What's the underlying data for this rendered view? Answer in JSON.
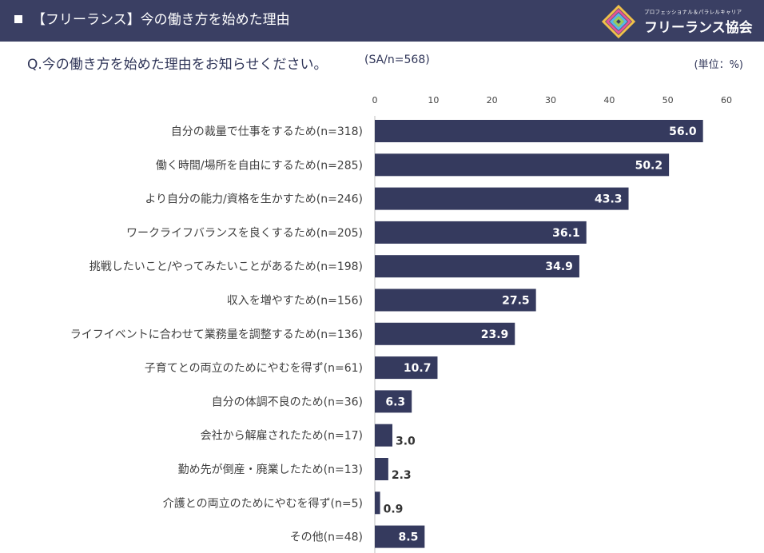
{
  "header": {
    "title": "【フリーランス】今の働き方を始めた理由",
    "logo_tagline": "プロフェッショナル＆パラレルキャリア",
    "logo_name": "フリーランス協会"
  },
  "question": {
    "text": "Q.今の働き方を始めた理由をお知らせください。",
    "sample": "(SA/n=568)",
    "unit": "(単位：%)"
  },
  "colors": {
    "header_bg": "#3a3f63",
    "bar": "#353a5e",
    "bar_label_inside": "#ffffff",
    "bar_label_outside": "#333333"
  },
  "chart_data": {
    "type": "bar",
    "orientation": "horizontal",
    "xlim": [
      0,
      60
    ],
    "ticks": [
      0,
      10,
      20,
      30,
      40,
      50,
      60
    ],
    "grid": false,
    "categories": [
      "自分の裁量で仕事をするため(n=318)",
      "働く時間/場所を自由にするため(n=285)",
      "より自分の能力/資格を生かすため(n=246)",
      "ワークライフバランスを良くするため(n=205)",
      "挑戦したいこと/やってみたいことがあるため(n=198)",
      "収入を増やすため(n=156)",
      "ライフイベントに合わせて業務量を調整するため(n=136)",
      "子育てとの両立のためにやむを得ず(n=61)",
      "自分の体調不良のため(n=36)",
      "会社から解雇されたため(n=17)",
      "勤め先が倒産・廃業したため(n=13)",
      "介護との両立のためにやむを得ず(n=5)",
      "その他(n=48)"
    ],
    "values": [
      56.0,
      50.2,
      43.3,
      36.1,
      34.9,
      27.5,
      23.9,
      10.7,
      6.3,
      3.0,
      2.3,
      0.9,
      8.5
    ],
    "value_labels": [
      "56.0",
      "50.2",
      "43.3",
      "36.1",
      "34.9",
      "27.5",
      "23.9",
      "10.7",
      "6.3",
      "3.0",
      "2.3",
      "0.9",
      "8.5"
    ]
  }
}
